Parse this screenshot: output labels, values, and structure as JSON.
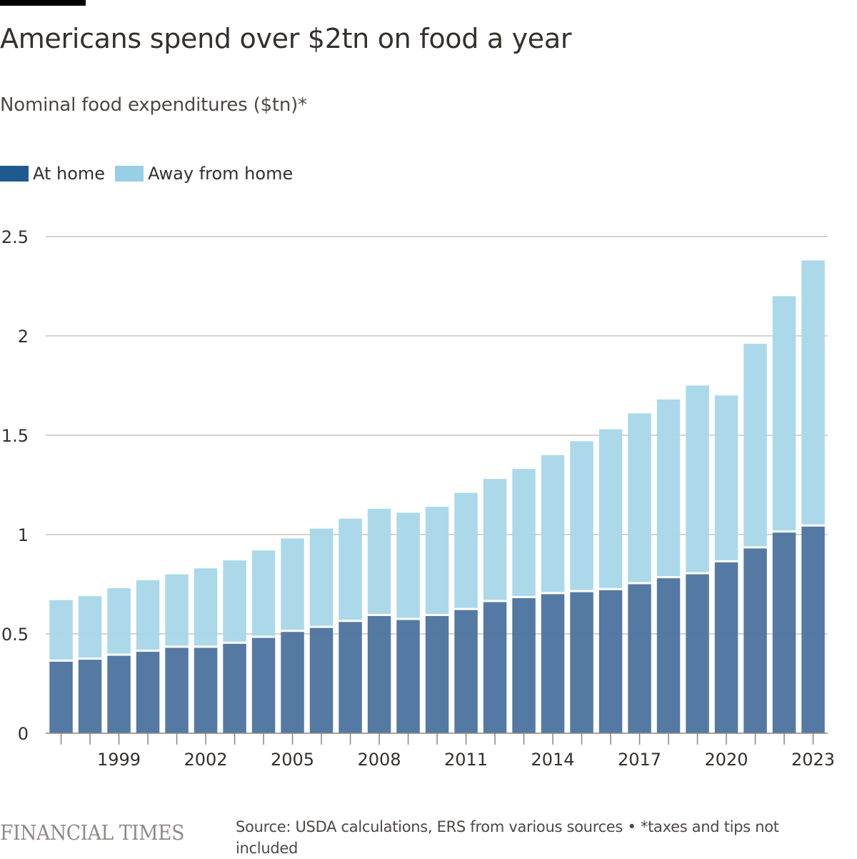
{
  "header": {
    "title": "Americans spend over $2tn on food a year",
    "subtitle": "Nominal food expenditures ($tn)*"
  },
  "legend": [
    {
      "label": "At home",
      "color": "#1f5a8f"
    },
    {
      "label": "Away from home",
      "color": "#96cfe6"
    }
  ],
  "footer": {
    "logo": "FINANCIAL TIMES",
    "source": "Source: USDA calculations, ERS from various sources • *taxes and tips not included"
  },
  "chart_data": {
    "type": "bar",
    "stacked": true,
    "title": "Americans spend over $2tn on food a year",
    "subtitle": "Nominal food expenditures ($tn)*",
    "xlabel": "",
    "ylabel": "$tn",
    "ylim": [
      0,
      2.5
    ],
    "yticks": [
      0,
      0.5,
      1,
      1.5,
      2,
      2.5
    ],
    "ytick_labels": [
      "0",
      "0.5",
      "1",
      "1.5",
      "2",
      "2.5"
    ],
    "grid": true,
    "legend_position": "top-left",
    "categories": [
      "1997",
      "1998",
      "1999",
      "2000",
      "2001",
      "2002",
      "2003",
      "2004",
      "2005",
      "2006",
      "2007",
      "2008",
      "2009",
      "2010",
      "2011",
      "2012",
      "2013",
      "2014",
      "2015",
      "2016",
      "2017",
      "2018",
      "2019",
      "2020",
      "2021",
      "2022",
      "2023"
    ],
    "xtick_labels": [
      "1999",
      "2002",
      "2005",
      "2008",
      "2011",
      "2014",
      "2017",
      "2020",
      "2023"
    ],
    "series": [
      {
        "name": "At home",
        "color": "#4e76a0",
        "values": [
          0.36,
          0.37,
          0.39,
          0.41,
          0.43,
          0.43,
          0.45,
          0.48,
          0.51,
          0.53,
          0.56,
          0.59,
          0.57,
          0.59,
          0.62,
          0.66,
          0.68,
          0.7,
          0.71,
          0.72,
          0.75,
          0.78,
          0.8,
          0.86,
          0.93,
          1.01,
          1.04
        ]
      },
      {
        "name": "Away from home",
        "color": "#a8d8e8",
        "values": [
          0.31,
          0.32,
          0.34,
          0.36,
          0.37,
          0.4,
          0.42,
          0.44,
          0.47,
          0.5,
          0.52,
          0.54,
          0.54,
          0.55,
          0.59,
          0.62,
          0.65,
          0.7,
          0.76,
          0.81,
          0.86,
          0.9,
          0.95,
          0.84,
          1.03,
          1.19,
          1.34
        ]
      }
    ],
    "totals": [
      0.67,
      0.69,
      0.73,
      0.77,
      0.8,
      0.83,
      0.87,
      0.92,
      0.98,
      1.03,
      1.08,
      1.13,
      1.11,
      1.14,
      1.21,
      1.28,
      1.33,
      1.4,
      1.47,
      1.53,
      1.61,
      1.68,
      1.75,
      1.7,
      1.96,
      2.2,
      2.38
    ]
  }
}
